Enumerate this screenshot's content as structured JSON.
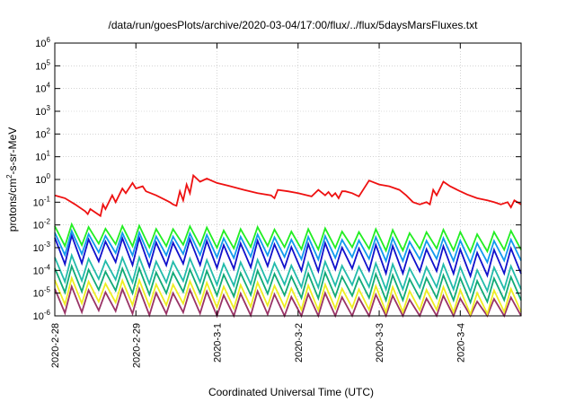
{
  "chart_data": {
    "type": "line",
    "title": "/data/run/goesPlots/archive/2020-03-04/17:00/flux/../flux/5daysMarsFluxes.txt",
    "xlabel": "Coordinated Universal Time (UTC)",
    "ylabel": {
      "pre": "protons/cm",
      "sup": "2",
      "post": "-s-sr-MeV"
    },
    "y_scale": "log",
    "ylim": [
      1e-06,
      1000000.0
    ],
    "xlim": [
      "2020-02-28T00:00",
      "2020-03-04T18:00"
    ],
    "x_ticks": [
      "2020-2-28",
      "2020-2-29",
      "2020-3-1",
      "2020-3-2",
      "2020-3-3",
      "2020-3-4"
    ],
    "y_ticks": [
      {
        "base": "10",
        "exp": "-6",
        "value": 1e-06
      },
      {
        "base": "10",
        "exp": "-5",
        "value": 1e-05
      },
      {
        "base": "10",
        "exp": "-4",
        "value": 0.0001
      },
      {
        "base": "10",
        "exp": "-3",
        "value": 0.001
      },
      {
        "base": "10",
        "exp": "-2",
        "value": 0.01
      },
      {
        "base": "10",
        "exp": "-1",
        "value": 0.1
      },
      {
        "base": "10",
        "exp": "0",
        "value": 1.0
      },
      {
        "base": "10",
        "exp": "1",
        "value": 10.0
      },
      {
        "base": "10",
        "exp": "2",
        "value": 100.0
      },
      {
        "base": "10",
        "exp": "3",
        "value": 1000.0
      },
      {
        "base": "10",
        "exp": "4",
        "value": 10000.0
      },
      {
        "base": "10",
        "exp": "5",
        "value": 100000.0
      },
      {
        "base": "10",
        "exp": "6",
        "value": 1000000.0
      }
    ],
    "grid": true,
    "series": [
      {
        "color": "#ee1111",
        "x": [
          "2020-02-28T00:00",
          "2020-02-28T03:00",
          "2020-02-28T06:00",
          "2020-02-28T09:00",
          "2020-02-28T09:45",
          "2020-02-28T10:30",
          "2020-02-28T13:30",
          "2020-02-28T14:15",
          "2020-02-28T15:00",
          "2020-02-28T17:00",
          "2020-02-28T18:00",
          "2020-02-28T20:00",
          "2020-02-28T21:00",
          "2020-02-28T23:00",
          "2020-02-29T00:00",
          "2020-02-29T02:00",
          "2020-02-29T03:00",
          "2020-02-29T06:00",
          "2020-02-29T09:00",
          "2020-02-29T10:00",
          "2020-02-29T11:00",
          "2020-02-29T12:00",
          "2020-02-29T13:00",
          "2020-02-29T14:00",
          "2020-02-29T15:00",
          "2020-02-29T16:00",
          "2020-02-29T17:00",
          "2020-02-29T19:00",
          "2020-02-29T21:00",
          "2020-03-01T00:00",
          "2020-03-01T04:00",
          "2020-03-01T08:00",
          "2020-03-01T12:00",
          "2020-03-01T16:00",
          "2020-03-01T17:00",
          "2020-03-01T18:00",
          "2020-03-01T21:00",
          "2020-03-02T00:00",
          "2020-03-02T04:00",
          "2020-03-02T06:00",
          "2020-03-02T08:00",
          "2020-03-02T09:00",
          "2020-03-02T10:00",
          "2020-03-02T11:00",
          "2020-03-02T12:00",
          "2020-03-02T13:00",
          "2020-03-02T14:00",
          "2020-03-02T16:00",
          "2020-03-02T18:00",
          "2020-03-02T21:00",
          "2020-03-03T00:00",
          "2020-03-03T03:00",
          "2020-03-03T06:00",
          "2020-03-03T08:00",
          "2020-03-03T10:00",
          "2020-03-03T12:00",
          "2020-03-03T14:00",
          "2020-03-03T15:00",
          "2020-03-03T16:00",
          "2020-03-03T17:00",
          "2020-03-03T19:00",
          "2020-03-03T21:00",
          "2020-03-04T00:00",
          "2020-03-04T02:00",
          "2020-03-04T05:00",
          "2020-03-04T08:00",
          "2020-03-04T10:00",
          "2020-03-04T12:00",
          "2020-03-04T14:00",
          "2020-03-04T15:00",
          "2020-03-04T16:00",
          "2020-03-04T18:00"
        ],
        "y": [
          0.2,
          0.15,
          0.08,
          0.04,
          0.03,
          0.05,
          0.025,
          0.08,
          0.05,
          0.2,
          0.1,
          0.4,
          0.25,
          0.7,
          0.4,
          0.5,
          0.3,
          0.2,
          0.12,
          0.1,
          0.08,
          0.07,
          0.3,
          0.12,
          0.6,
          0.25,
          1.5,
          0.8,
          1.1,
          0.7,
          0.5,
          0.35,
          0.25,
          0.2,
          0.15,
          0.35,
          0.3,
          0.25,
          0.18,
          0.35,
          0.2,
          0.28,
          0.18,
          0.25,
          0.15,
          0.3,
          0.3,
          0.25,
          0.18,
          0.9,
          0.6,
          0.5,
          0.35,
          0.2,
          0.1,
          0.08,
          0.1,
          0.08,
          0.35,
          0.2,
          0.8,
          0.5,
          0.3,
          0.22,
          0.15,
          0.12,
          0.1,
          0.08,
          0.1,
          0.06,
          0.12,
          0.08
        ]
      },
      {
        "color": "#22ee22",
        "base": 0.0035,
        "amp": 0.45,
        "trend": -0.3
      },
      {
        "color": "#1199ee",
        "base": 0.0016,
        "amp": 0.5,
        "trend": -0.4
      },
      {
        "color": "#1111cc",
        "base": 0.0008,
        "amp": 0.6,
        "trend": -0.6
      },
      {
        "color": "#22bbaa",
        "base": 0.00012,
        "amp": 0.55,
        "trend": -0.5
      },
      {
        "color": "#11aa77",
        "base": 4e-05,
        "amp": 0.55,
        "trend": -0.5
      },
      {
        "color": "#eeee22",
        "base": 1.2e-05,
        "amp": 0.55,
        "trend": -0.5
      },
      {
        "color": "#993366",
        "base": 5e-06,
        "amp": 0.55,
        "trend": -0.5
      }
    ]
  }
}
